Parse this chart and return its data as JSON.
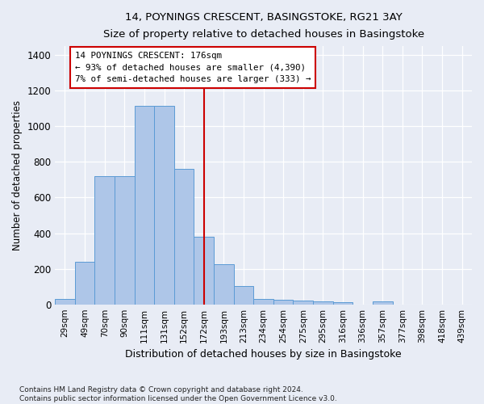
{
  "title": "14, POYNINGS CRESCENT, BASINGSTOKE, RG21 3AY",
  "subtitle": "Size of property relative to detached houses in Basingstoke",
  "xlabel": "Distribution of detached houses by size in Basingstoke",
  "ylabel": "Number of detached properties",
  "categories": [
    "29sqm",
    "49sqm",
    "70sqm",
    "90sqm",
    "111sqm",
    "131sqm",
    "152sqm",
    "172sqm",
    "193sqm",
    "213sqm",
    "234sqm",
    "254sqm",
    "275sqm",
    "295sqm",
    "316sqm",
    "336sqm",
    "357sqm",
    "377sqm",
    "398sqm",
    "418sqm",
    "439sqm"
  ],
  "values": [
    30,
    240,
    720,
    720,
    1115,
    1115,
    760,
    380,
    225,
    105,
    30,
    25,
    20,
    15,
    10,
    0,
    15,
    0,
    0,
    0,
    0
  ],
  "bar_color": "#aec6e8",
  "bar_edge_color": "#5b9bd5",
  "property_line_x": 7.0,
  "annotation_text": "14 POYNINGS CRESCENT: 176sqm\n← 93% of detached houses are smaller (4,390)\n7% of semi-detached houses are larger (333) →",
  "annotation_box_color": "#ffffff",
  "annotation_box_edge": "#cc0000",
  "vline_color": "#cc0000",
  "bg_color": "#e8ecf5",
  "footer_text": "Contains HM Land Registry data © Crown copyright and database right 2024.\nContains public sector information licensed under the Open Government Licence v3.0.",
  "ylim": [
    0,
    1450
  ],
  "yticks": [
    0,
    200,
    400,
    600,
    800,
    1000,
    1200,
    1400
  ]
}
